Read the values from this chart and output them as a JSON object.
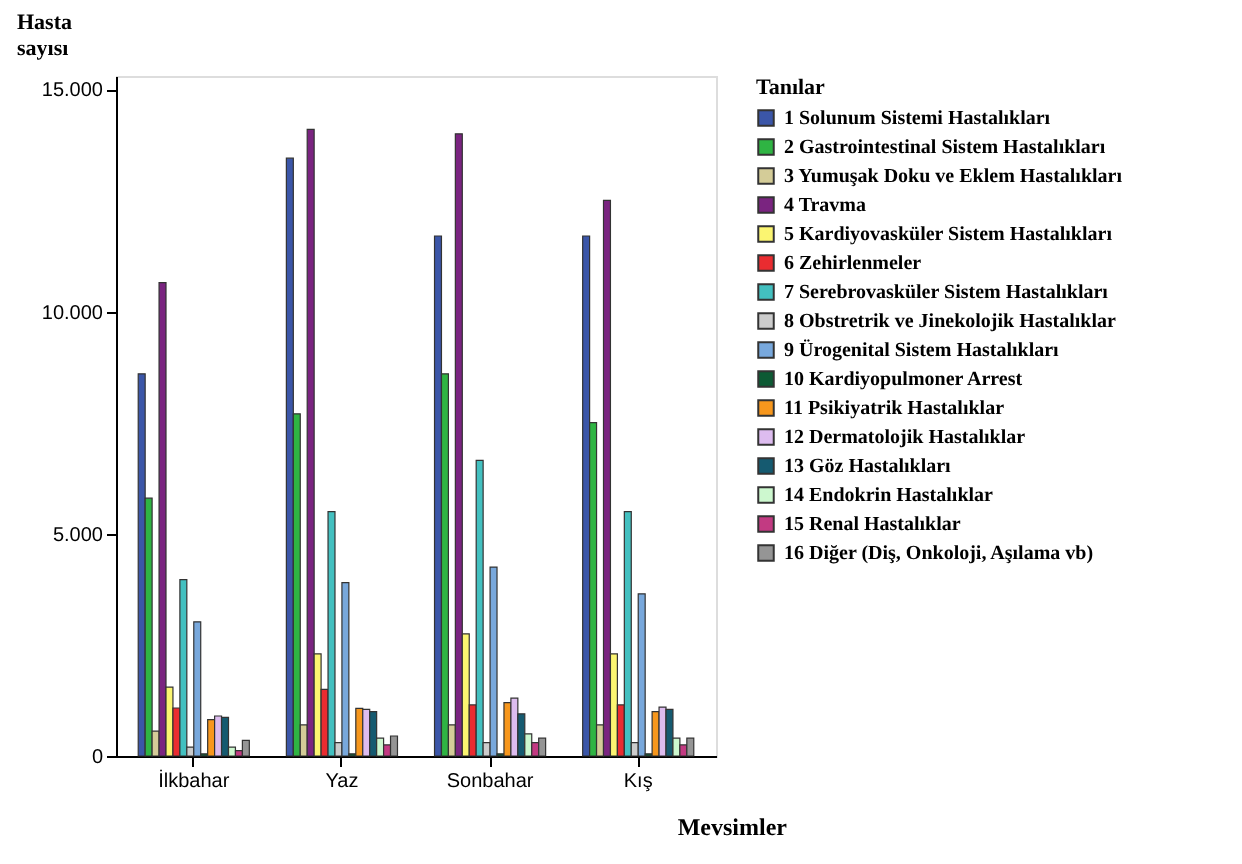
{
  "chart_data": {
    "type": "bar",
    "xlabel": "Mevsimler",
    "ylabel": "Hasta sayısı",
    "legend_title": "Tanılar",
    "legend": "right",
    "grid": false,
    "categories": [
      "İlkbahar",
      "Yaz",
      "Sonbahar",
      "Kış"
    ],
    "ylim": [
      0,
      15300
    ],
    "yticks": [
      0,
      {
        "value": 5000,
        "label": "5.000"
      },
      {
        "value": 10000,
        "label": "10.000"
      },
      {
        "value": 15000,
        "label": "15.000"
      }
    ],
    "series": [
      {
        "name": "1 Solunum Sistemi Hastalıkları",
        "color": "#3b56a8",
        "values": [
          8600,
          13450,
          11700,
          11700
        ]
      },
      {
        "name": "2 Gastrointestinal Sistem Hastalıkları",
        "color": "#2fb443",
        "values": [
          5800,
          7700,
          8600,
          7500
        ]
      },
      {
        "name": "3 Yumuşak Doku ve Eklem Hastalıkları",
        "color": "#d4cc98",
        "values": [
          560,
          700,
          700,
          700
        ]
      },
      {
        "name": "4 Travma",
        "color": "#7a2480",
        "values": [
          10650,
          14100,
          14000,
          12500
        ]
      },
      {
        "name": "5 Kardiyovasküler Sistem Hastalıkları",
        "color": "#fbf571",
        "values": [
          1550,
          2300,
          2750,
          2300
        ]
      },
      {
        "name": "6 Zehirlenmeler",
        "color": "#ea2c30",
        "values": [
          1080,
          1500,
          1150,
          1150
        ]
      },
      {
        "name": "7 Serebrovasküler Sistem Hastalıkları",
        "color": "#43c0c0",
        "values": [
          3970,
          5500,
          6650,
          5500
        ]
      },
      {
        "name": "8 Obstretrik ve Jinekolojik Hastalıklar",
        "color": "#cccccc",
        "values": [
          200,
          300,
          300,
          300
        ]
      },
      {
        "name": "9 Ürogenital Sistem Hastalıkları",
        "color": "#78a8dc",
        "values": [
          3020,
          3900,
          4250,
          3650
        ]
      },
      {
        "name": "10 Kardiyopulmoner Arrest",
        "color": "#0d5a34",
        "values": [
          50,
          50,
          50,
          50
        ]
      },
      {
        "name": "11 Psikiyatrik Hastalıklar",
        "color": "#f7971d",
        "values": [
          820,
          1070,
          1200,
          1000
        ]
      },
      {
        "name": "12 Dermatolojik Hastalıklar",
        "color": "#ddbcef",
        "values": [
          900,
          1050,
          1300,
          1100
        ]
      },
      {
        "name": "13 Göz Hastalıkları",
        "color": "#155a70",
        "values": [
          870,
          1000,
          950,
          1050
        ]
      },
      {
        "name": "14 Endokrin Hastalıklar",
        "color": "#cdf8cf",
        "values": [
          200,
          400,
          500,
          400
        ]
      },
      {
        "name": "15 Renal Hastalıklar",
        "color": "#c23a82",
        "values": [
          120,
          250,
          300,
          250
        ]
      },
      {
        "name": "16 Diğer (Diş, Onkoloji, Aşılama vb)",
        "color": "#959595",
        "values": [
          350,
          450,
          400,
          400
        ]
      }
    ]
  }
}
